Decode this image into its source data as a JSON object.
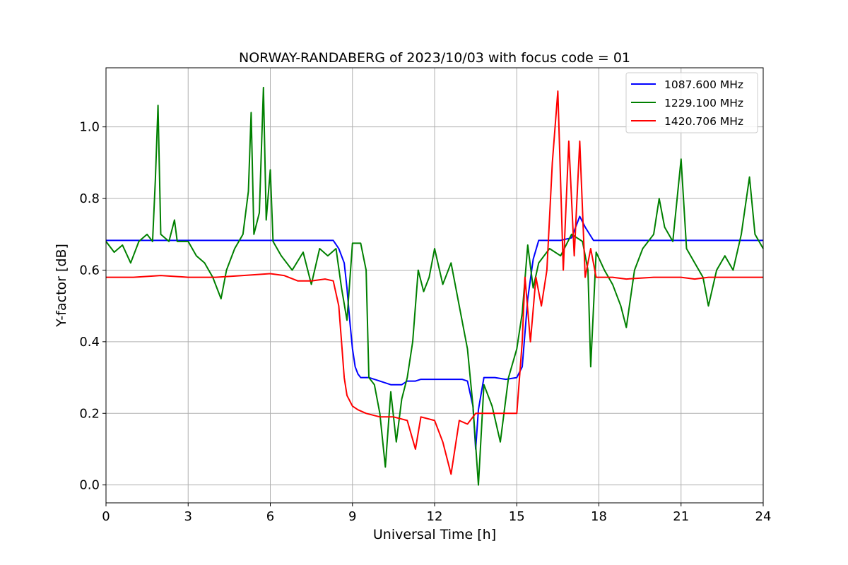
{
  "chart_data": {
    "type": "line",
    "title": "NORWAY-RANDABERG of 2023/10/03 with focus code = 01",
    "xlabel": "Universal Time [h]",
    "ylabel": "Y-factor [dB]",
    "xlim": [
      0,
      24
    ],
    "ylim": [
      -0.05,
      1.165
    ],
    "xticks": [
      0,
      3,
      6,
      9,
      12,
      15,
      18,
      21,
      24
    ],
    "xtick_labels": [
      "0",
      "3",
      "6",
      "9",
      "12",
      "15",
      "18",
      "21",
      "24"
    ],
    "yticks": [
      0.0,
      0.2,
      0.4,
      0.6,
      0.8,
      1.0
    ],
    "ytick_labels": [
      "0.0",
      "0.2",
      "0.4",
      "0.6",
      "0.8",
      "1.0"
    ],
    "grid": true,
    "legend_position": "top-right",
    "series": [
      {
        "name": "1087.600 MHz",
        "color": "#0000ff",
        "points": [
          [
            0,
            0.683
          ],
          [
            1,
            0.683
          ],
          [
            2,
            0.683
          ],
          [
            3,
            0.683
          ],
          [
            4,
            0.683
          ],
          [
            5,
            0.683
          ],
          [
            6,
            0.683
          ],
          [
            7,
            0.683
          ],
          [
            8,
            0.683
          ],
          [
            8.3,
            0.683
          ],
          [
            8.5,
            0.66
          ],
          [
            8.7,
            0.62
          ],
          [
            8.8,
            0.55
          ],
          [
            8.9,
            0.46
          ],
          [
            9.0,
            0.38
          ],
          [
            9.1,
            0.33
          ],
          [
            9.2,
            0.31
          ],
          [
            9.3,
            0.3
          ],
          [
            9.6,
            0.3
          ],
          [
            10.0,
            0.29
          ],
          [
            10.4,
            0.28
          ],
          [
            10.8,
            0.28
          ],
          [
            11.0,
            0.29
          ],
          [
            11.3,
            0.29
          ],
          [
            11.5,
            0.295
          ],
          [
            12.0,
            0.295
          ],
          [
            12.5,
            0.295
          ],
          [
            13.0,
            0.295
          ],
          [
            13.2,
            0.29
          ],
          [
            13.4,
            0.22
          ],
          [
            13.5,
            0.1
          ],
          [
            13.6,
            0.21
          ],
          [
            13.8,
            0.3
          ],
          [
            14.2,
            0.3
          ],
          [
            14.6,
            0.295
          ],
          [
            15.0,
            0.3
          ],
          [
            15.2,
            0.33
          ],
          [
            15.4,
            0.52
          ],
          [
            15.6,
            0.63
          ],
          [
            15.8,
            0.683
          ],
          [
            16.2,
            0.683
          ],
          [
            16.6,
            0.683
          ],
          [
            17.0,
            0.69
          ],
          [
            17.3,
            0.75
          ],
          [
            17.5,
            0.72
          ],
          [
            17.8,
            0.683
          ],
          [
            18.5,
            0.683
          ],
          [
            19.5,
            0.683
          ],
          [
            20.5,
            0.683
          ],
          [
            21.5,
            0.683
          ],
          [
            22.5,
            0.683
          ],
          [
            23.5,
            0.683
          ],
          [
            24,
            0.683
          ]
        ]
      },
      {
        "name": "1229.100 MHz",
        "color": "#008000",
        "points": [
          [
            0,
            0.68
          ],
          [
            0.3,
            0.65
          ],
          [
            0.6,
            0.67
          ],
          [
            0.9,
            0.62
          ],
          [
            1.2,
            0.68
          ],
          [
            1.5,
            0.7
          ],
          [
            1.7,
            0.68
          ],
          [
            1.8,
            0.85
          ],
          [
            1.9,
            1.06
          ],
          [
            2.0,
            0.7
          ],
          [
            2.3,
            0.68
          ],
          [
            2.5,
            0.74
          ],
          [
            2.6,
            0.68
          ],
          [
            3.0,
            0.68
          ],
          [
            3.3,
            0.64
          ],
          [
            3.6,
            0.62
          ],
          [
            3.9,
            0.58
          ],
          [
            4.2,
            0.52
          ],
          [
            4.4,
            0.6
          ],
          [
            4.7,
            0.66
          ],
          [
            5.0,
            0.7
          ],
          [
            5.2,
            0.82
          ],
          [
            5.3,
            1.04
          ],
          [
            5.4,
            0.7
          ],
          [
            5.6,
            0.76
          ],
          [
            5.75,
            1.11
          ],
          [
            5.85,
            0.74
          ],
          [
            6.0,
            0.88
          ],
          [
            6.1,
            0.68
          ],
          [
            6.4,
            0.64
          ],
          [
            6.8,
            0.6
          ],
          [
            7.2,
            0.65
          ],
          [
            7.5,
            0.56
          ],
          [
            7.8,
            0.66
          ],
          [
            8.1,
            0.64
          ],
          [
            8.4,
            0.66
          ],
          [
            8.6,
            0.55
          ],
          [
            8.8,
            0.46
          ],
          [
            9.0,
            0.675
          ],
          [
            9.3,
            0.675
          ],
          [
            9.5,
            0.6
          ],
          [
            9.6,
            0.3
          ],
          [
            9.8,
            0.28
          ],
          [
            10.0,
            0.2
          ],
          [
            10.2,
            0.05
          ],
          [
            10.4,
            0.26
          ],
          [
            10.6,
            0.12
          ],
          [
            10.8,
            0.24
          ],
          [
            11.0,
            0.3
          ],
          [
            11.2,
            0.4
          ],
          [
            11.4,
            0.6
          ],
          [
            11.6,
            0.54
          ],
          [
            11.8,
            0.58
          ],
          [
            12.0,
            0.66
          ],
          [
            12.3,
            0.56
          ],
          [
            12.6,
            0.62
          ],
          [
            12.9,
            0.5
          ],
          [
            13.2,
            0.38
          ],
          [
            13.4,
            0.22
          ],
          [
            13.6,
            0.0
          ],
          [
            13.8,
            0.28
          ],
          [
            14.1,
            0.22
          ],
          [
            14.4,
            0.12
          ],
          [
            14.7,
            0.3
          ],
          [
            15.0,
            0.38
          ],
          [
            15.2,
            0.48
          ],
          [
            15.4,
            0.67
          ],
          [
            15.6,
            0.55
          ],
          [
            15.8,
            0.62
          ],
          [
            16.2,
            0.66
          ],
          [
            16.6,
            0.64
          ],
          [
            17.0,
            0.7
          ],
          [
            17.4,
            0.68
          ],
          [
            17.6,
            0.6
          ],
          [
            17.7,
            0.33
          ],
          [
            17.9,
            0.65
          ],
          [
            18.2,
            0.6
          ],
          [
            18.5,
            0.56
          ],
          [
            18.8,
            0.5
          ],
          [
            19.0,
            0.44
          ],
          [
            19.3,
            0.6
          ],
          [
            19.6,
            0.66
          ],
          [
            20.0,
            0.7
          ],
          [
            20.2,
            0.8
          ],
          [
            20.4,
            0.72
          ],
          [
            20.7,
            0.68
          ],
          [
            21.0,
            0.91
          ],
          [
            21.2,
            0.66
          ],
          [
            21.5,
            0.62
          ],
          [
            21.8,
            0.58
          ],
          [
            22.0,
            0.5
          ],
          [
            22.3,
            0.6
          ],
          [
            22.6,
            0.64
          ],
          [
            22.9,
            0.6
          ],
          [
            23.2,
            0.7
          ],
          [
            23.5,
            0.86
          ],
          [
            23.7,
            0.7
          ],
          [
            24,
            0.66
          ]
        ]
      },
      {
        "name": "1420.706 MHz",
        "color": "#ff0000",
        "points": [
          [
            0,
            0.58
          ],
          [
            1,
            0.58
          ],
          [
            2,
            0.585
          ],
          [
            3,
            0.58
          ],
          [
            4,
            0.58
          ],
          [
            5,
            0.585
          ],
          [
            6,
            0.59
          ],
          [
            6.5,
            0.585
          ],
          [
            7,
            0.57
          ],
          [
            7.5,
            0.57
          ],
          [
            8,
            0.575
          ],
          [
            8.3,
            0.57
          ],
          [
            8.5,
            0.5
          ],
          [
            8.6,
            0.4
          ],
          [
            8.7,
            0.3
          ],
          [
            8.8,
            0.25
          ],
          [
            9.0,
            0.22
          ],
          [
            9.2,
            0.21
          ],
          [
            9.5,
            0.2
          ],
          [
            10.0,
            0.19
          ],
          [
            10.5,
            0.19
          ],
          [
            11.0,
            0.18
          ],
          [
            11.3,
            0.1
          ],
          [
            11.5,
            0.19
          ],
          [
            12.0,
            0.18
          ],
          [
            12.3,
            0.12
          ],
          [
            12.6,
            0.03
          ],
          [
            12.9,
            0.18
          ],
          [
            13.2,
            0.17
          ],
          [
            13.5,
            0.2
          ],
          [
            14.0,
            0.2
          ],
          [
            14.5,
            0.2
          ],
          [
            15.0,
            0.2
          ],
          [
            15.2,
            0.4
          ],
          [
            15.3,
            0.58
          ],
          [
            15.5,
            0.4
          ],
          [
            15.7,
            0.58
          ],
          [
            15.9,
            0.5
          ],
          [
            16.1,
            0.6
          ],
          [
            16.3,
            0.9
          ],
          [
            16.5,
            1.1
          ],
          [
            16.7,
            0.6
          ],
          [
            16.9,
            0.96
          ],
          [
            17.1,
            0.64
          ],
          [
            17.3,
            0.96
          ],
          [
            17.5,
            0.58
          ],
          [
            17.7,
            0.66
          ],
          [
            17.9,
            0.58
          ],
          [
            18.5,
            0.58
          ],
          [
            19.0,
            0.575
          ],
          [
            20.0,
            0.58
          ],
          [
            21.0,
            0.58
          ],
          [
            21.5,
            0.575
          ],
          [
            22.0,
            0.58
          ],
          [
            23.0,
            0.58
          ],
          [
            24,
            0.58
          ]
        ]
      }
    ]
  }
}
